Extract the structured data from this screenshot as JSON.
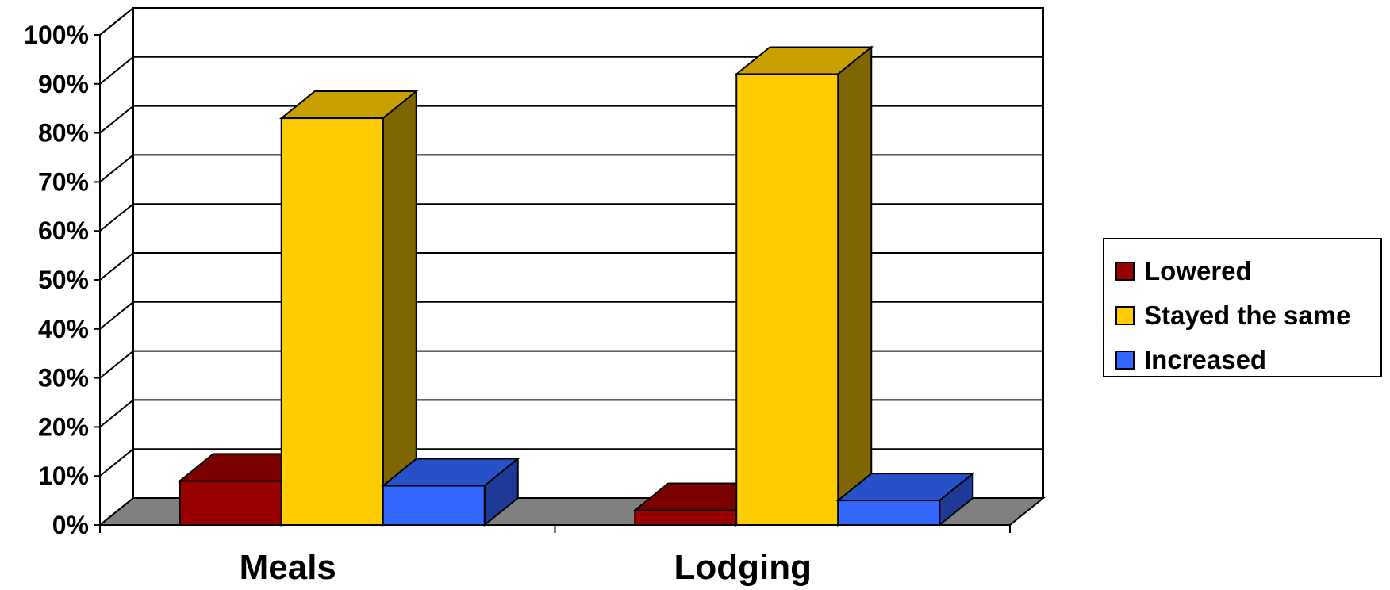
{
  "chart_data": {
    "type": "bar",
    "categories": [
      "Meals",
      "Lodging"
    ],
    "series": [
      {
        "name": "Lowered",
        "values": [
          9,
          3
        ],
        "color": "#990000",
        "top_color": "#7a0000",
        "side_color": "#5c0000"
      },
      {
        "name": "Stayed the same",
        "values": [
          83,
          92
        ],
        "color": "#ffcc00",
        "top_color": "#c8a000",
        "side_color": "#806600"
      },
      {
        "name": "Increased",
        "values": [
          8,
          5
        ],
        "color": "#3366ff",
        "top_color": "#2850c8",
        "side_color": "#1c3a96"
      }
    ],
    "y_ticks": [
      "0%",
      "10%",
      "20%",
      "30%",
      "40%",
      "50%",
      "60%",
      "70%",
      "80%",
      "90%",
      "100%"
    ],
    "ylim": [
      0,
      100
    ],
    "title": "",
    "xlabel": "",
    "ylabel": "",
    "grid": true,
    "legend_position": "right",
    "floor_color": "#808080"
  }
}
